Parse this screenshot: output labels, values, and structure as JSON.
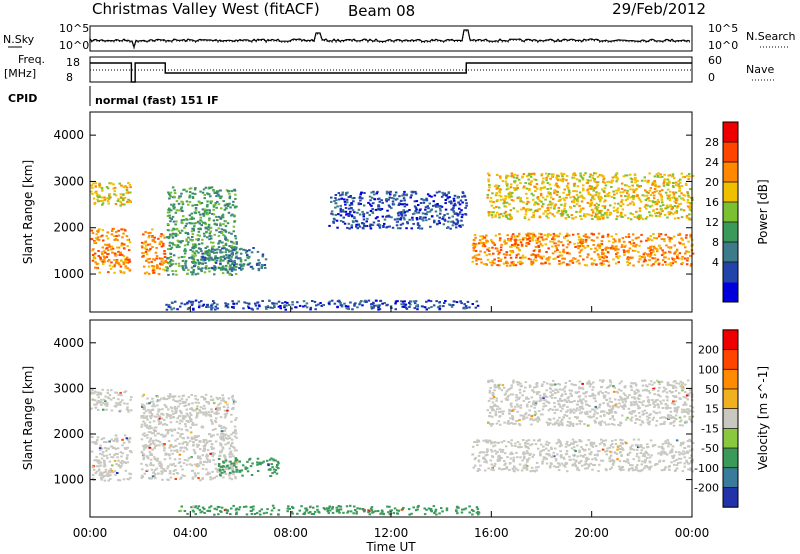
{
  "header": {
    "station": "Christmas Valley West (fitACF)",
    "beam": "Beam 08",
    "date": "29/Feb/2012"
  },
  "noise_panel": {
    "left_label": "N.Sky",
    "right_label": "N.Search",
    "left_ticks": [
      "10^5",
      "10^0"
    ],
    "right_ticks": [
      "10^5",
      "10^0"
    ]
  },
  "freq_panel": {
    "left_label_1": "Freq.",
    "left_label_2": "[MHz]",
    "right_label": "Nave",
    "left_ticks": [
      "18",
      "8"
    ],
    "right_ticks": [
      "60",
      "0"
    ]
  },
  "cpid": {
    "label": "CPID",
    "value": "normal (fast) 151 IF"
  },
  "x_axis": {
    "label": "Time UT",
    "ticks": [
      "00:00",
      "04:00",
      "08:00",
      "12:00",
      "16:00",
      "20:00",
      "00:00"
    ]
  },
  "chart_data": [
    {
      "type": "heatmap",
      "title": "",
      "xlabel": "Time UT",
      "ylabel": "Slant Range [km]",
      "x_range_hours": [
        0,
        24
      ],
      "ylim": [
        180,
        4500
      ],
      "y_ticks": [
        1000,
        2000,
        3000,
        4000
      ],
      "colorbar": {
        "label": "Power [dB]",
        "ticks": [
          "28",
          "24",
          "20",
          "16",
          "12",
          "8",
          "4"
        ],
        "colors": [
          "#0000dd",
          "#2244aa",
          "#3d7a8a",
          "#3a9a5a",
          "#7ac030",
          "#f0c000",
          "#ff8800",
          "#ff4400",
          "#ee0000"
        ]
      },
      "regions": [
        {
          "t": [
            0.0,
            1.6
          ],
          "r": [
            1000,
            2000
          ],
          "value": 26
        },
        {
          "t": [
            0.0,
            1.6
          ],
          "r": [
            2500,
            3000
          ],
          "value": 22
        },
        {
          "t": [
            2.0,
            3.0
          ],
          "r": [
            1000,
            2000
          ],
          "value": 25
        },
        {
          "t": [
            3.0,
            5.8
          ],
          "r": [
            1000,
            2900
          ],
          "value": 14
        },
        {
          "t": [
            4.0,
            7.0
          ],
          "r": [
            1100,
            1600
          ],
          "value": 10
        },
        {
          "t": [
            3.0,
            15.5
          ],
          "r": [
            250,
            450
          ],
          "value": 7
        },
        {
          "t": [
            9.5,
            15.0
          ],
          "r": [
            2000,
            2800
          ],
          "value": 6
        },
        {
          "t": [
            15.2,
            24.0
          ],
          "r": [
            1200,
            1900
          ],
          "value": 27
        },
        {
          "t": [
            15.8,
            24.0
          ],
          "r": [
            2200,
            3200
          ],
          "value": 23
        }
      ]
    },
    {
      "type": "heatmap",
      "title": "",
      "xlabel": "Time UT",
      "ylabel": "Slant Range [km]",
      "x_range_hours": [
        0,
        24
      ],
      "ylim": [
        180,
        4500
      ],
      "y_ticks": [
        1000,
        2000,
        3000,
        4000
      ],
      "colorbar": {
        "label": "Velocity [m s^-1]",
        "ticks": [
          "200",
          "100",
          "50",
          "15",
          "-15",
          "-50",
          "-100",
          "-200"
        ],
        "colors": [
          "#2233aa",
          "#3a7a9a",
          "#3a9a5a",
          "#8ac840",
          "#c8c8c0",
          "#f0b020",
          "#ff8c00",
          "#ff4400",
          "#ee0000"
        ]
      },
      "regions": [
        {
          "t": [
            0.0,
            1.6
          ],
          "r": [
            1000,
            2000
          ],
          "value": 0
        },
        {
          "t": [
            0.0,
            1.6
          ],
          "r": [
            2500,
            3000
          ],
          "value": 0
        },
        {
          "t": [
            2.0,
            5.8
          ],
          "r": [
            1000,
            2900
          ],
          "value": 0
        },
        {
          "t": [
            5.0,
            7.5
          ],
          "r": [
            1100,
            1500
          ],
          "value": -60
        },
        {
          "t": [
            3.5,
            15.5
          ],
          "r": [
            250,
            450
          ],
          "value": -60
        },
        {
          "t": [
            15.2,
            24.0
          ],
          "r": [
            1200,
            1900
          ],
          "value": 0
        },
        {
          "t": [
            15.8,
            24.0
          ],
          "r": [
            2200,
            3200
          ],
          "value": 0
        }
      ]
    }
  ]
}
